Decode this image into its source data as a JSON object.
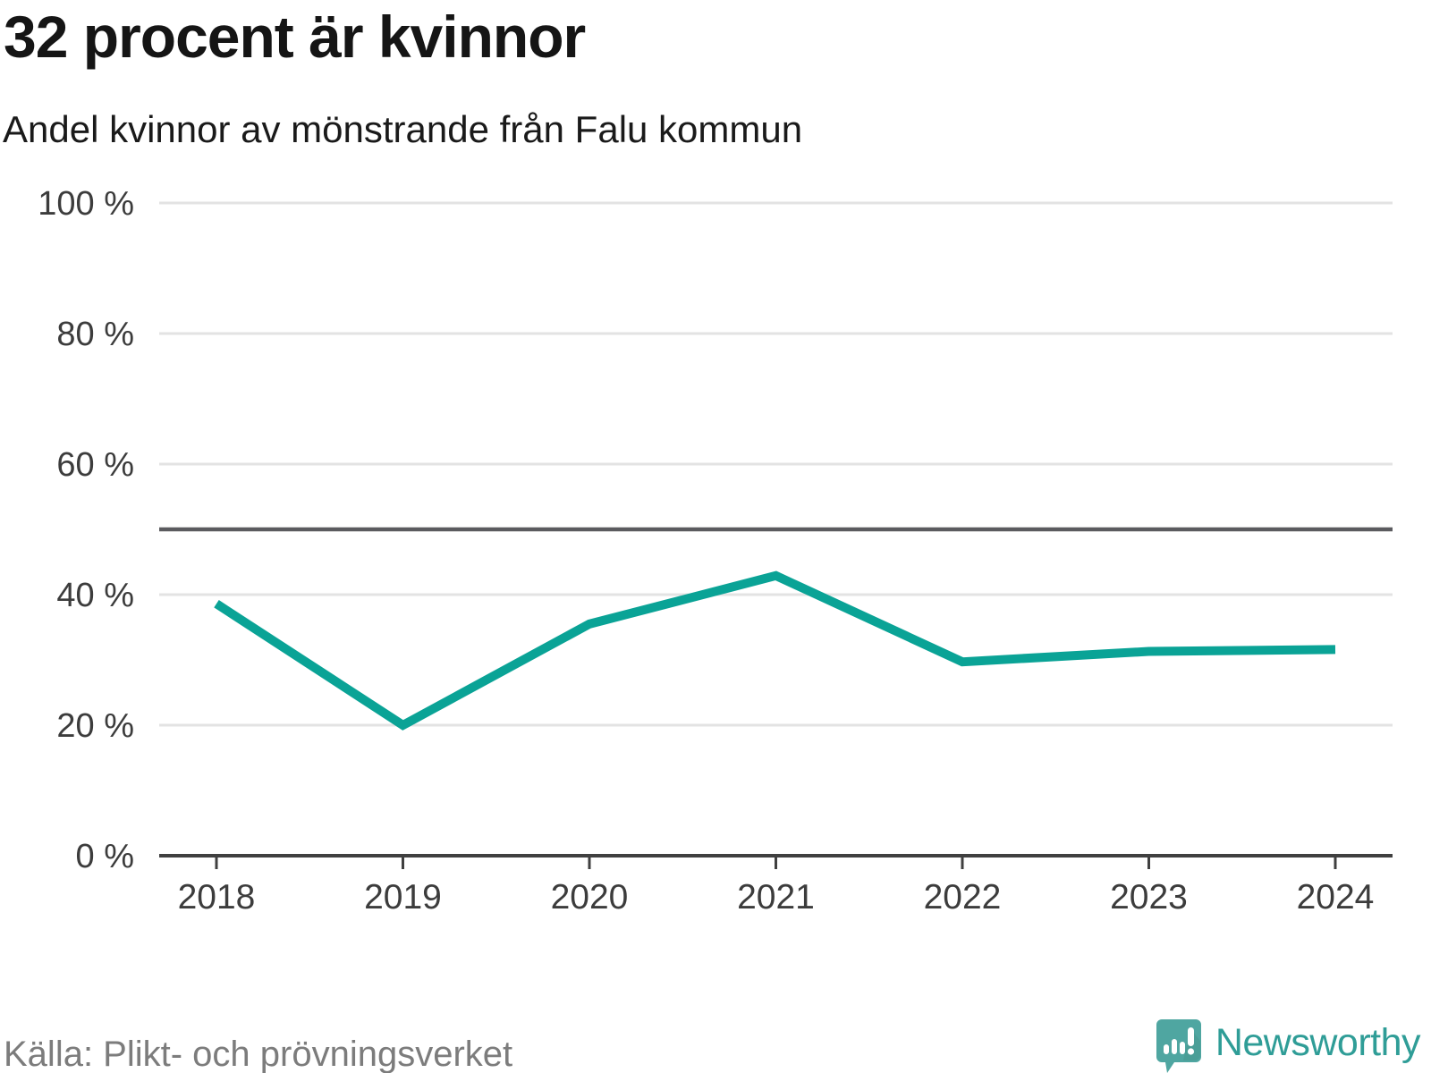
{
  "title": "32 procent är kvinnor",
  "subtitle": "Andel kvinnor av mönstrande från Falu kommun",
  "source": "Källa: Plikt- och prövningsverket",
  "branding": {
    "wordmark": "Newsworthy",
    "logo_icon": "speech-bubble-bar-chart-icon",
    "wordmark_color": "#2f9d97",
    "bubble_color": "#4fa6a1"
  },
  "colors": {
    "line": "#0AA396",
    "grid": "#E3E3E3",
    "reference_line": "#5B5B5F",
    "axis": "#404040",
    "tick_label": "#3C3C3C"
  },
  "chart_data": {
    "type": "line",
    "title": "32 procent är kvinnor",
    "subtitle": "Andel kvinnor av mönstrande från Falu kommun",
    "x": [
      2018,
      2019,
      2020,
      2021,
      2022,
      2023,
      2024
    ],
    "x_labels": [
      "2018",
      "2019",
      "2020",
      "2021",
      "2022",
      "2023",
      "2024"
    ],
    "values": [
      38.6,
      20.0,
      35.5,
      42.9,
      29.7,
      31.3,
      31.6
    ],
    "ylim": [
      0,
      100
    ],
    "yticks": [
      0,
      20,
      40,
      60,
      80,
      100
    ],
    "ytick_labels": [
      "0 %",
      "20 %",
      "40 %",
      "60 %",
      "80 %",
      "100 %"
    ],
    "reference_line": 50,
    "grid": "horizontal",
    "legend": "none",
    "line_color": "#0AA396",
    "source": "Källa: Plikt- och prövningsverket"
  }
}
